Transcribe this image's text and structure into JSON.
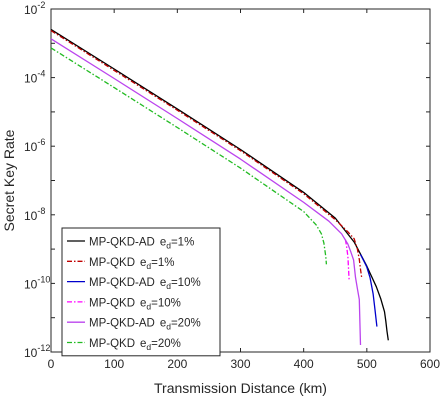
{
  "chart_data": {
    "type": "line",
    "title": "",
    "xlabel": "Transmission Distance (km)",
    "ylabel": "Secret Key Rate",
    "x_scale": "linear",
    "y_scale": "log",
    "xlim": [
      0,
      600
    ],
    "ylim": [
      1e-12,
      0.01
    ],
    "x_ticks": [
      {
        "value": 0,
        "label": "0"
      },
      {
        "value": 100,
        "label": "100"
      },
      {
        "value": 200,
        "label": "200"
      },
      {
        "value": 300,
        "label": "300"
      },
      {
        "value": 400,
        "label": "400"
      },
      {
        "value": 500,
        "label": "500"
      },
      {
        "value": 600,
        "label": "600"
      }
    ],
    "y_ticks": [
      {
        "exp": -12,
        "base": "10",
        "sup": "-12"
      },
      {
        "exp": -10,
        "base": "10",
        "sup": "-10"
      },
      {
        "exp": -8,
        "base": "10",
        "sup": "-8"
      },
      {
        "exp": -6,
        "base": "10",
        "sup": "-6"
      },
      {
        "exp": -4,
        "base": "10",
        "sup": "-4"
      },
      {
        "exp": -2,
        "base": "10",
        "sup": "-2"
      }
    ],
    "grid": false,
    "legend_position": "bottom-left",
    "series": [
      {
        "name": "MP-QKD-AD",
        "sub": "d",
        "suffix": "=1%",
        "color": "#000000",
        "dash": "solid",
        "x": [
          0,
          100,
          200,
          300,
          400,
          450,
          480,
          500,
          515,
          522,
          528,
          530,
          532,
          534
        ],
        "y": [
          0.00255,
          0.000178,
          1.22e-05,
          8e-07,
          4.5e-08,
          8e-09,
          1.6e-09,
          3.2e-10,
          8e-11,
          3.6e-11,
          1.5e-11,
          8e-12,
          4e-12,
          2.2e-12
        ]
      },
      {
        "name": "MP-QKD",
        "sub": "d",
        "suffix": "=1%",
        "color": "#c00000",
        "dash": "dashdot",
        "x": [
          0,
          100,
          200,
          300,
          400,
          450,
          470,
          480,
          485,
          488,
          490,
          492
        ],
        "y": [
          0.00235,
          0.000162,
          1.12e-05,
          7.4e-07,
          4.1e-08,
          7.2e-09,
          3.2e-09,
          2e-09,
          1e-09,
          5e-10,
          2.6e-10,
          1.4e-10
        ]
      },
      {
        "name": "MP-QKD-AD",
        "sub": "d",
        "suffix": "=10%",
        "color": "#0000cc",
        "dash": "solid",
        "x": [
          490,
          495,
          500,
          505,
          510,
          513,
          516
        ],
        "y": [
          7e-10,
          4.6e-10,
          3e-10,
          1.5e-10,
          5e-11,
          1.7e-11,
          5.5e-12
        ]
      },
      {
        "name": "MP-QKD",
        "sub": "d",
        "suffix": "=10%",
        "color": "#ff00ff",
        "dash": "dashdot",
        "x": [
          466,
          468,
          470,
          471,
          472
        ],
        "y": [
          1.9e-09,
          1.2e-09,
          6e-10,
          2.8e-10,
          1.3e-10
        ]
      },
      {
        "name": "MP-QKD-AD",
        "sub": "d",
        "suffix": "=20%",
        "color": "#bb44ee",
        "dash": "solid",
        "x": [
          0,
          100,
          200,
          300,
          400,
          440,
          460,
          470,
          475,
          479,
          482,
          485,
          488,
          490
        ],
        "y": [
          0.00135,
          9.4e-05,
          6.4e-06,
          4.2e-07,
          2.3e-08,
          6.5e-09,
          2.8e-09,
          1.4e-09,
          8e-10,
          4.8e-10,
          1.5e-10,
          7e-11,
          3.4e-11,
          1.6e-12
        ]
      },
      {
        "name": "MP-QKD",
        "sub": "d",
        "suffix": "=20%",
        "color": "#22bb22",
        "dash": "dashdot",
        "x": [
          0,
          100,
          200,
          300,
          400,
          420,
          428,
          432,
          435,
          436
        ],
        "y": [
          0.000735,
          5.1e-05,
          3.5e-06,
          2.3e-07,
          1.24e-08,
          5e-09,
          2.8e-09,
          1.5e-09,
          6e-10,
          3.6e-10
        ]
      }
    ]
  }
}
